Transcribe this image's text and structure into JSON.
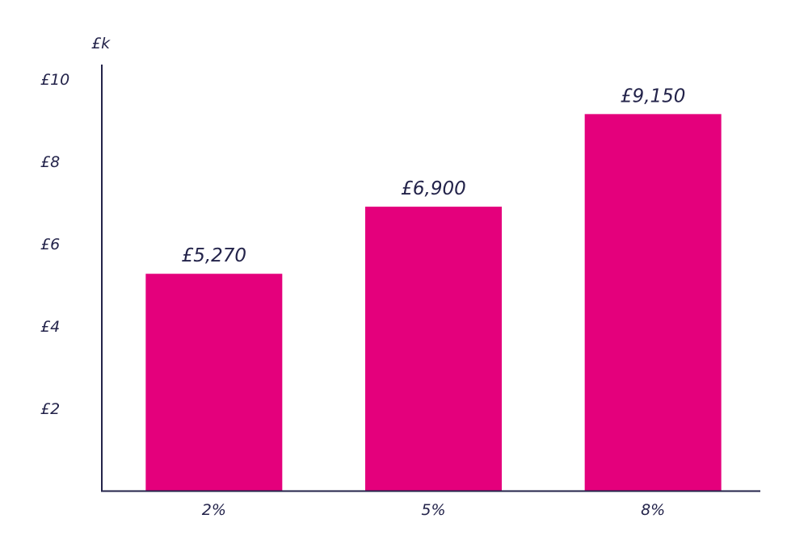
{
  "colors": {
    "bar": "#e4007c",
    "text": "#23234a",
    "axis": "#23234a",
    "background": "#ffffff"
  },
  "chart_data": {
    "type": "bar",
    "title": "",
    "xlabel": "",
    "ylabel": "£k",
    "categories": [
      "2%",
      "5%",
      "8%"
    ],
    "values": [
      5.27,
      6.9,
      9.15
    ],
    "data_labels": [
      "£5,270",
      "£6,900",
      "£9,150"
    ],
    "y_ticks": [
      2,
      4,
      6,
      8,
      10
    ],
    "y_tick_labels": [
      "£2",
      "£4",
      "£6",
      "£8",
      "£10"
    ],
    "ylim": [
      0,
      10.5
    ],
    "grid": false,
    "legend": "none"
  }
}
